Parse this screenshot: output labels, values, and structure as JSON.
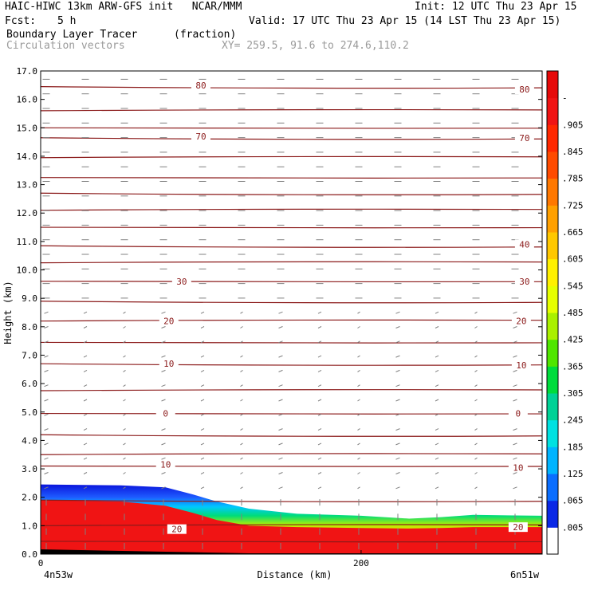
{
  "header": {
    "model_line": "HAIC-HIWC 13km ARW-GFS init   NCAR/MMM",
    "init_line": "Init: 12 UTC Thu 23 Apr 15",
    "fcst_label": "Fcst:",
    "fcst_value": "5 h",
    "valid_line": "Valid: 17 UTC Thu 23 Apr 15 (14 LST Thu 23 Apr 15)",
    "field_name": "Boundary Layer Tracer",
    "field_units": "(fraction)",
    "overlay_name": "Circulation vectors",
    "xy_line": "XY= 259.5, 91.6 to 274.6,110.2"
  },
  "colors": {
    "contour": "#8b1a1a",
    "vector": "#808080",
    "frame": "#000000"
  },
  "chart_data": {
    "type": "heatmap",
    "xlabel": "Distance (km)",
    "ylabel": "Height (km)",
    "xlim": [
      0,
      313
    ],
    "ylim": [
      0,
      17
    ],
    "x_tick_labels": [
      "0",
      "200"
    ],
    "x_tick_values": [
      0,
      200
    ],
    "x_end_labels": {
      "left": "4n53w",
      "right": "6n51w"
    },
    "y_ticks": [
      0,
      1,
      2,
      3,
      4,
      5,
      6,
      7,
      8,
      9,
      10,
      11,
      12,
      13,
      14,
      15,
      16,
      17
    ],
    "y_tick_labels": [
      "0.0",
      "1.0",
      "2.0",
      "3.0",
      "4.0",
      "5.0",
      "6.0",
      "7.0",
      "8.0",
      "9.0",
      "10.0",
      "11.0",
      "12.0",
      "13.0",
      "14.0",
      "15.0",
      "16.0",
      "17.0"
    ],
    "colorbar": {
      "labels": [
        ".005",
        ".065",
        ".125",
        ".185",
        ".245",
        ".305",
        ".365",
        ".425",
        ".485",
        ".545",
        ".605",
        ".665",
        ".725",
        ".785",
        ".845",
        ".905",
        "-"
      ],
      "colors": [
        "#ffffff",
        "#0a28e6",
        "#0a6eff",
        "#00b4ff",
        "#00e1e1",
        "#00d296",
        "#00dc3c",
        "#50e600",
        "#aaf000",
        "#e6ff00",
        "#fff000",
        "#ffc800",
        "#ffa000",
        "#ff7800",
        "#ff4b00",
        "#ff2800",
        "#f01414",
        "#e60a0a"
      ]
    },
    "tracer_top_km": {
      "x": [
        0,
        50,
        78,
        95,
        110,
        130,
        160,
        200,
        230,
        250,
        270,
        313
      ],
      "top": [
        2.45,
        2.42,
        2.35,
        2.1,
        1.85,
        1.6,
        1.42,
        1.35,
        1.25,
        1.3,
        1.38,
        1.35
      ],
      "red_top": [
        1.9,
        1.85,
        1.7,
        1.45,
        1.2,
        1.0,
        0.95,
        0.92,
        0.9,
        0.92,
        0.95,
        0.95
      ]
    },
    "contour_label_values": [
      "80",
      "80",
      "70",
      "70",
      "40",
      "30",
      "30",
      "20",
      "20",
      "10",
      "10",
      "0",
      "0",
      "10",
      "10",
      "20",
      "20"
    ],
    "contour_labels": [
      {
        "text": "80",
        "x": 100,
        "y": 16.5
      },
      {
        "text": "80",
        "x": 302,
        "y": 16.35
      },
      {
        "text": "70",
        "x": 100,
        "y": 14.7
      },
      {
        "text": "70",
        "x": 302,
        "y": 14.65
      },
      {
        "text": "40",
        "x": 302,
        "y": 10.9
      },
      {
        "text": "30",
        "x": 88,
        "y": 9.6
      },
      {
        "text": "30",
        "x": 302,
        "y": 9.6
      },
      {
        "text": "20",
        "x": 80,
        "y": 8.2
      },
      {
        "text": "20",
        "x": 300,
        "y": 8.2
      },
      {
        "text": "10",
        "x": 80,
        "y": 6.7
      },
      {
        "text": "10",
        "x": 300,
        "y": 6.65
      },
      {
        "text": "0",
        "x": 78,
        "y": 4.95
      },
      {
        "text": "0",
        "x": 298,
        "y": 4.95
      },
      {
        "text": "10",
        "x": 78,
        "y": 3.15
      },
      {
        "text": "10",
        "x": 298,
        "y": 3.05
      },
      {
        "text": "20",
        "x": 85,
        "y": 0.88
      },
      {
        "text": "20",
        "x": 298,
        "y": 0.95
      }
    ],
    "isotherm_levels_km": [
      16.45,
      15.6,
      15.0,
      14.65,
      13.95,
      13.25,
      12.7,
      12.1,
      11.5,
      10.85,
      10.25,
      9.6,
      8.9,
      8.2,
      7.45,
      6.7,
      5.75,
      4.95,
      4.2,
      3.5,
      3.1,
      1.9,
      1.0,
      0.45
    ]
  }
}
